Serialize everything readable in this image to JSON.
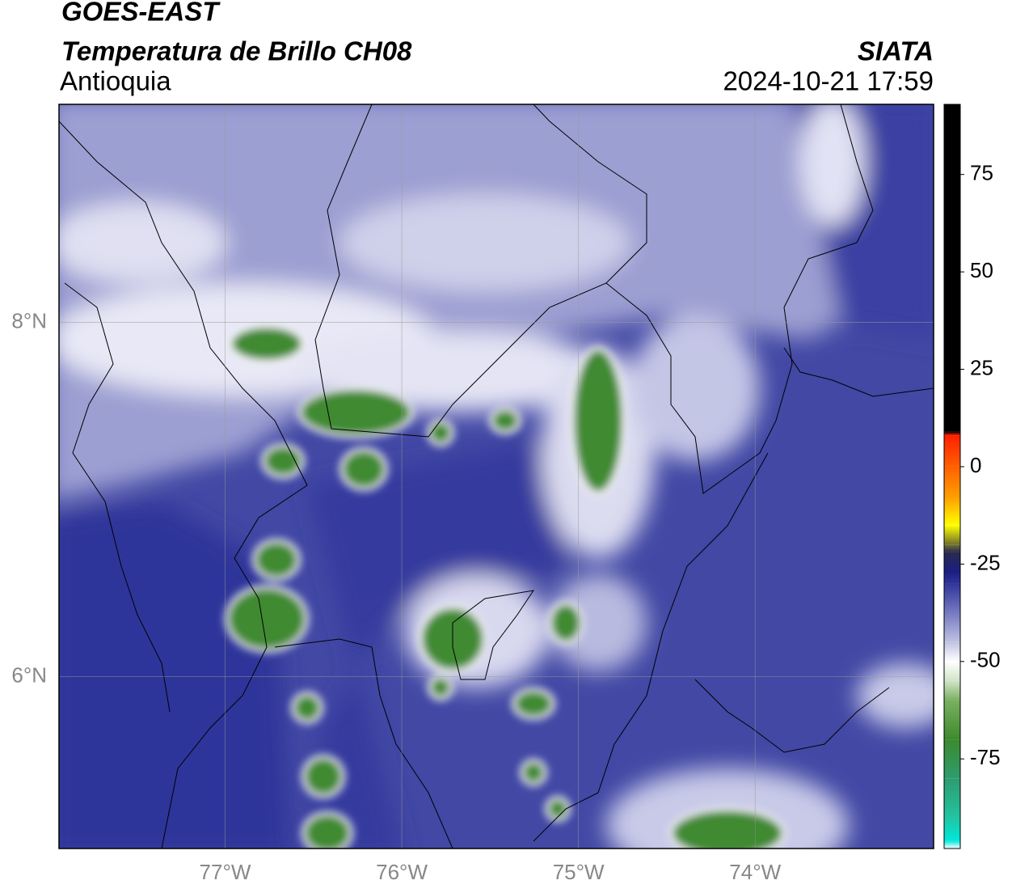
{
  "header": {
    "title": "GOES-EAST",
    "subtitle": "Temperatura de Brillo CH08",
    "region": "Antioquia",
    "source": "SIATA",
    "datetime": "2024-10-21 17:59"
  },
  "map": {
    "xlim": [
      -77.94,
      -72.99
    ],
    "ylim": [
      5.03,
      9.23
    ],
    "xticks": [
      {
        "value": -77,
        "label": "77°W"
      },
      {
        "value": -76,
        "label": "76°W"
      },
      {
        "value": -75,
        "label": "75°W"
      },
      {
        "value": -74,
        "label": "74°W"
      }
    ],
    "yticks": [
      {
        "value": 8,
        "label": "8°N"
      },
      {
        "value": 6,
        "label": "6°N"
      }
    ],
    "grid": true
  },
  "colorbar": {
    "lim": [
      -98,
      93
    ],
    "ticks": [
      75,
      50,
      25,
      0,
      -25,
      -50,
      -75
    ],
    "stops": [
      {
        "value": -98,
        "color": "#ffffff"
      },
      {
        "value": -96,
        "color": "#00e8dc"
      },
      {
        "value": -90,
        "color": "#22c4a0"
      },
      {
        "value": -80,
        "color": "#2e9c6e"
      },
      {
        "value": -70,
        "color": "#3d8a2e"
      },
      {
        "value": -60,
        "color": "#7ab060"
      },
      {
        "value": -55,
        "color": "#d0e4c8"
      },
      {
        "value": -50,
        "color": "#ffffff"
      },
      {
        "value": -45,
        "color": "#c0c2e2"
      },
      {
        "value": -38,
        "color": "#7a7ec2"
      },
      {
        "value": -30,
        "color": "#30359c"
      },
      {
        "value": -27,
        "color": "#1a1f80"
      },
      {
        "value": -22,
        "color": "#2a2a50"
      },
      {
        "value": -20,
        "color": "#707030"
      },
      {
        "value": -15,
        "color": "#ffff00"
      },
      {
        "value": -8,
        "color": "#ffa000"
      },
      {
        "value": 0,
        "color": "#ff6000"
      },
      {
        "value": 8,
        "color": "#ff2000"
      },
      {
        "value": 9,
        "color": "#000000"
      },
      {
        "value": 93,
        "color": "#000000"
      }
    ]
  }
}
